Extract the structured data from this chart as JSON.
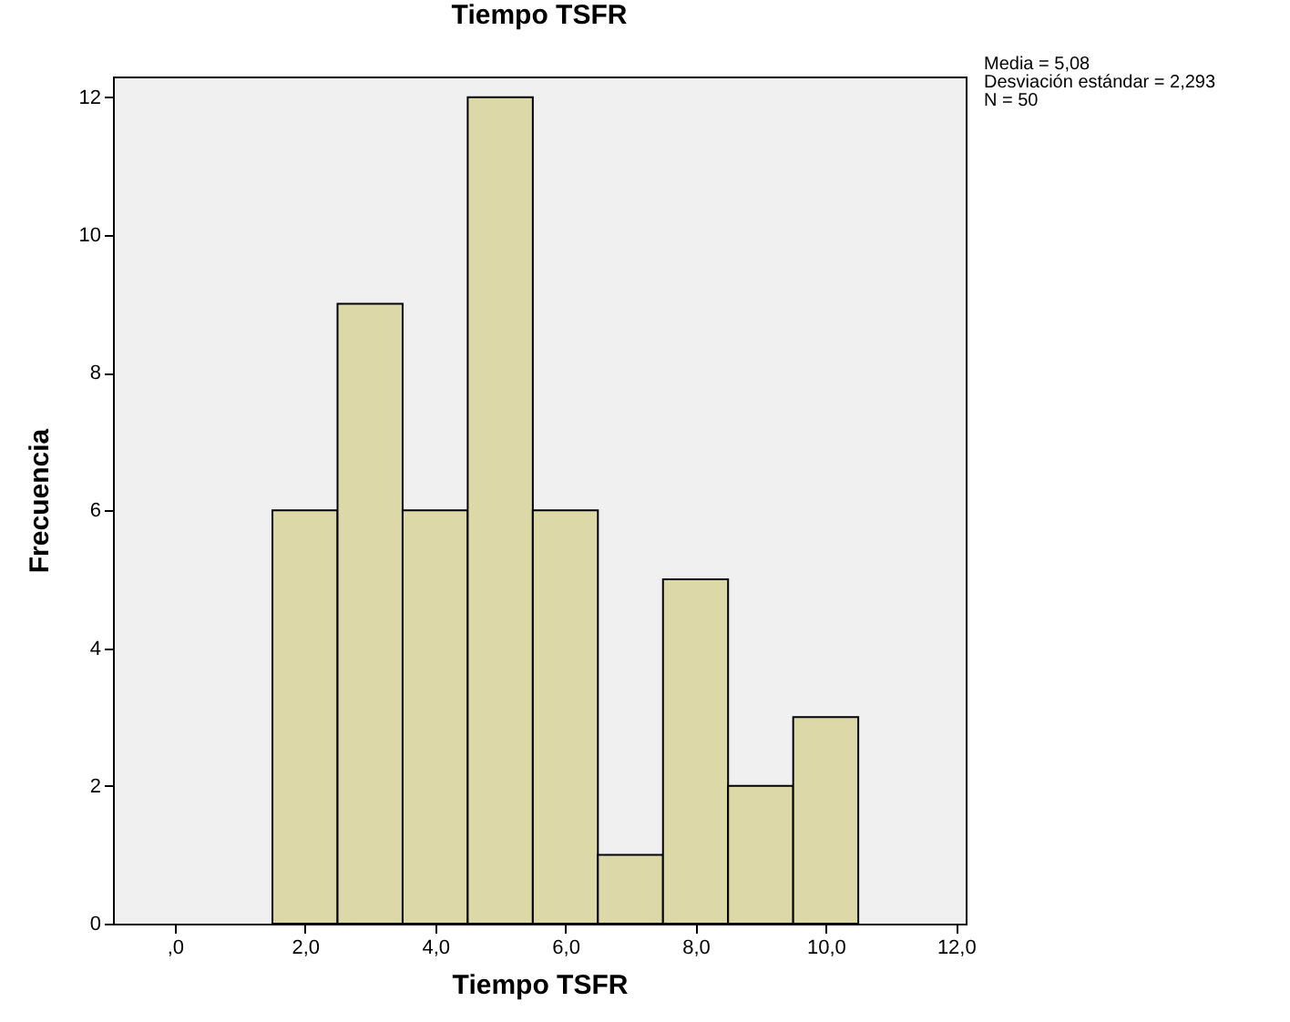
{
  "chart_data": {
    "type": "histogram",
    "title": "Tiempo TSFR",
    "xlabel": "Tiempo TSFR",
    "ylabel": "Frecuencia",
    "bins": [
      1.5,
      2.5,
      3.5,
      4.5,
      5.5,
      6.5,
      7.5,
      8.5,
      9.5,
      10.5
    ],
    "values": [
      6,
      9,
      6,
      12,
      6,
      1,
      5,
      2,
      3
    ],
    "color": "#dcd8a8",
    "xlim": [
      -0.95,
      12.15
    ],
    "xticks": [
      {
        "value": 0,
        "label": ",0"
      },
      {
        "value": 2,
        "label": "2,0"
      },
      {
        "value": 4,
        "label": "4,0"
      },
      {
        "value": 6,
        "label": "6,0"
      },
      {
        "value": 8,
        "label": "8,0"
      },
      {
        "value": 10,
        "label": "10,0"
      },
      {
        "value": 12,
        "label": "12,0"
      }
    ],
    "ylim": [
      0,
      12.3
    ],
    "yticks": [
      0,
      2,
      4,
      6,
      8,
      10,
      12
    ],
    "annotations": [
      "Media = 5,08",
      "Desviación estándar = 2,293",
      "N = 50"
    ],
    "grid": false
  }
}
